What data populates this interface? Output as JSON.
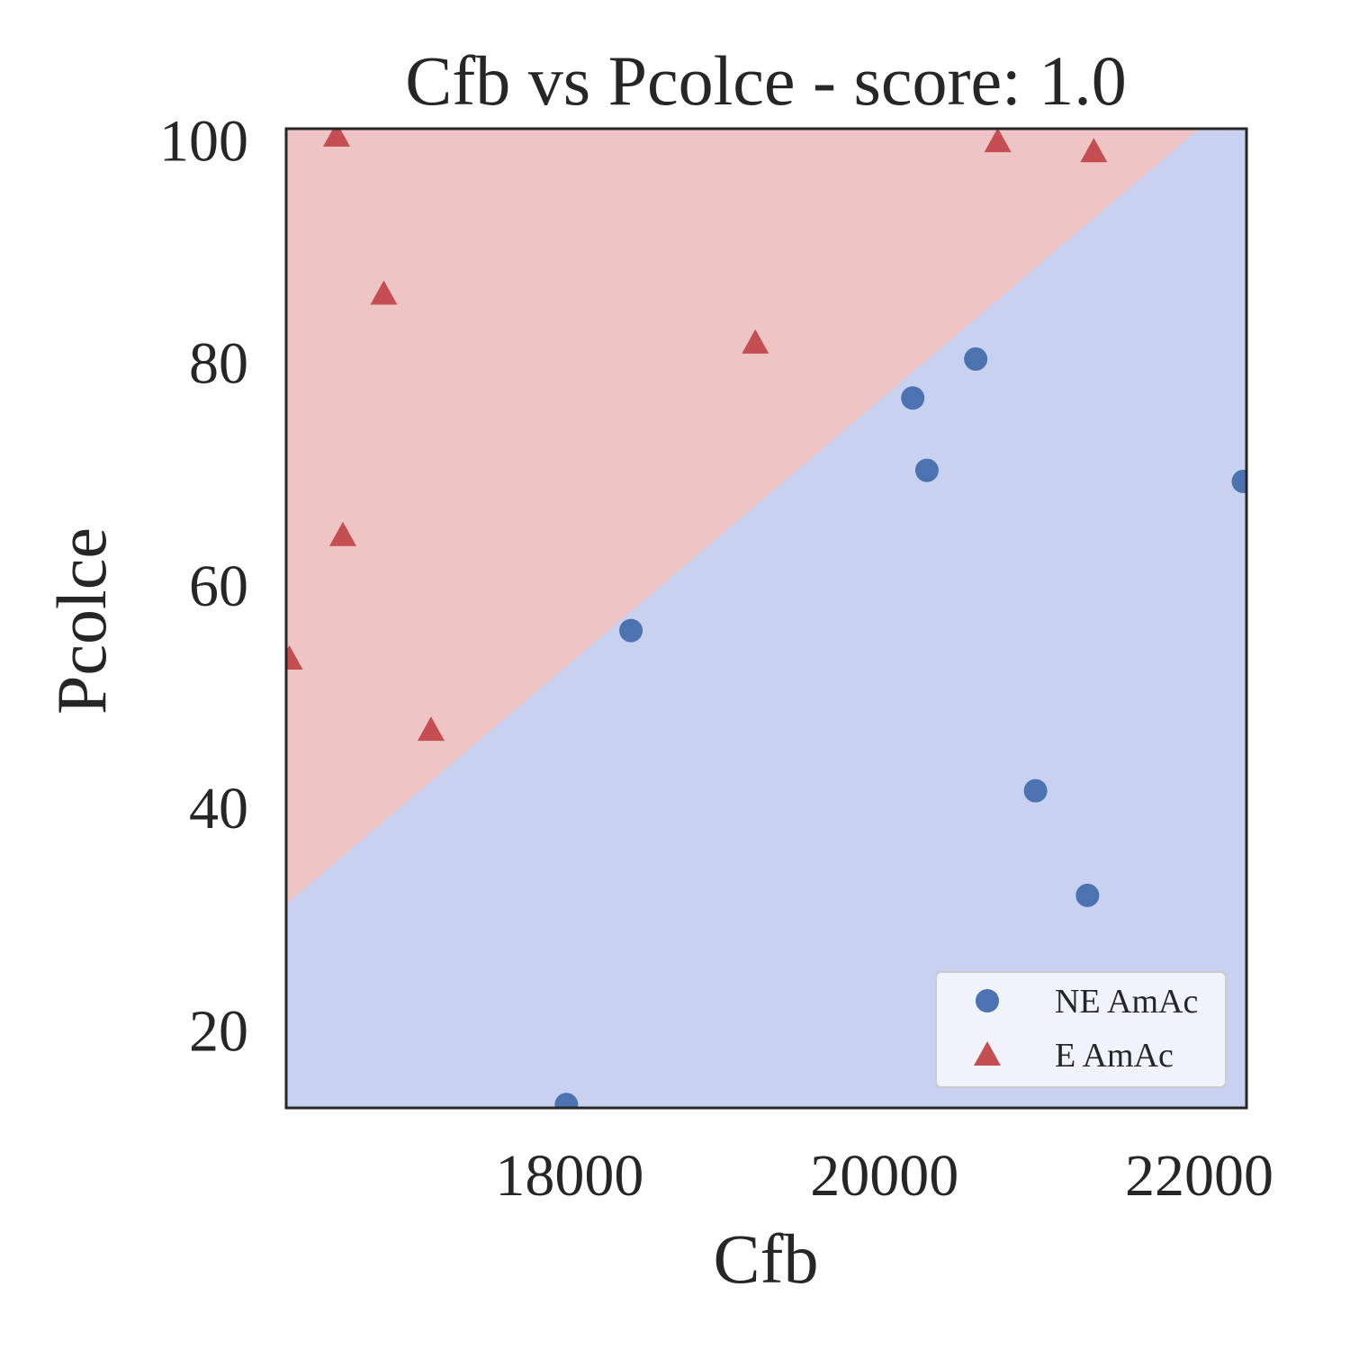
{
  "chart_data": {
    "type": "scatter",
    "title": "Cfb vs Pcolce - score: 1.0",
    "xlabel": "Cfb",
    "ylabel": "Pcolce",
    "xlim": [
      16200,
      22300
    ],
    "ylim": [
      13,
      101
    ],
    "xticks": [
      18000,
      20000,
      22000
    ],
    "yticks": [
      20,
      40,
      60,
      80,
      100
    ],
    "grid": false,
    "legend_position": "lower-right",
    "decision_boundary": {
      "x": [
        16200,
        22000
      ],
      "y": [
        31.3,
        101
      ]
    },
    "regions": {
      "above_color": "#eec4c4",
      "below_color": "#c9d1f1"
    },
    "series": [
      {
        "name": "NE AmAc",
        "marker": "circle",
        "color": "#4c72b0",
        "points": [
          [
            17980,
            13.3
          ],
          [
            18390,
            55.9
          ],
          [
            20180,
            76.8
          ],
          [
            20270,
            70.3
          ],
          [
            20580,
            80.3
          ],
          [
            20960,
            41.5
          ],
          [
            21290,
            32.1
          ],
          [
            22280,
            69.3
          ]
        ]
      },
      {
        "name": "E AmAc",
        "marker": "triangle",
        "color": "#c44e52",
        "points": [
          [
            16520,
            100.2
          ],
          [
            16560,
            64.3
          ],
          [
            16820,
            86.0
          ],
          [
            17120,
            46.8
          ],
          [
            16220,
            53.2
          ],
          [
            19180,
            81.6
          ],
          [
            20720,
            99.7
          ],
          [
            21330,
            98.8
          ]
        ]
      }
    ]
  }
}
